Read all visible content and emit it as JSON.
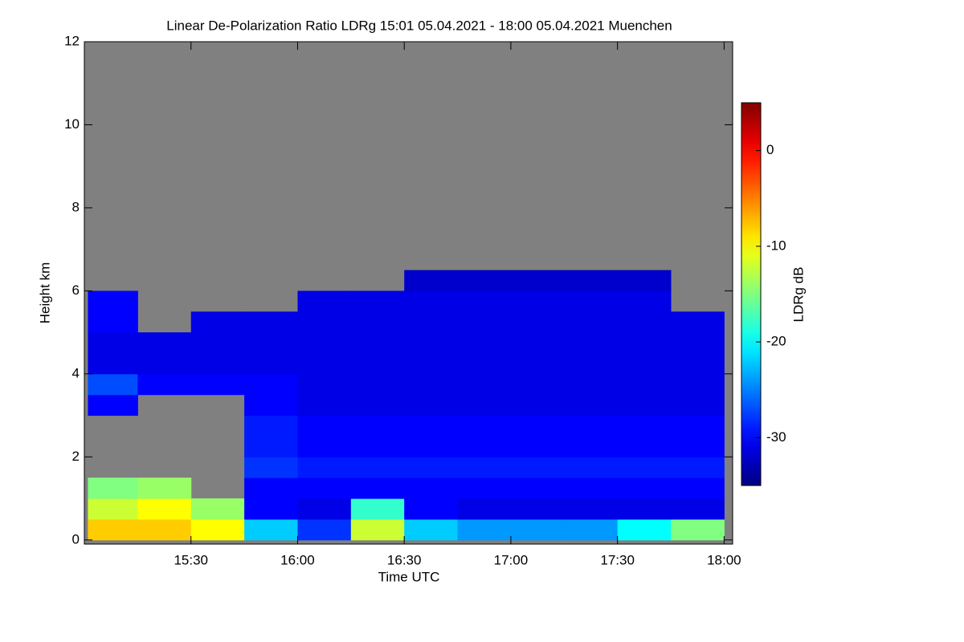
{
  "chart_data": {
    "type": "heatmap",
    "title": "Linear De-Polarization Ratio LDRg   15:01 05.04.2021 - 18:00 05.04.2021 Muenchen",
    "x_label": "Time UTC",
    "y_label": "Height km",
    "colorbar_label": "LDRg dB",
    "xlim": [
      15.0,
      18.04
    ],
    "xticks": [
      {
        "value": 15.5,
        "label": "15:30"
      },
      {
        "value": 16.0,
        "label": "16:00"
      },
      {
        "value": 16.5,
        "label": "16:30"
      },
      {
        "value": 17.0,
        "label": "17:00"
      },
      {
        "value": 17.5,
        "label": "17:30"
      },
      {
        "value": 18.0,
        "label": "18:00"
      }
    ],
    "ylim": [
      -0.1,
      12
    ],
    "yticks": [
      0,
      2,
      4,
      6,
      8,
      10,
      12
    ],
    "clim": [
      -35,
      5
    ],
    "cticks": [
      0,
      -10,
      -20,
      -30
    ],
    "colormap": "jet",
    "missing_color": "#808080",
    "xbins": [
      15.0167,
      15.25,
      15.5,
      15.75,
      16.0,
      16.25,
      16.5,
      16.75,
      17.0,
      17.25,
      17.5,
      17.75,
      18.0
    ],
    "ybins": [
      0,
      0.5,
      1,
      1.5,
      2,
      2.5,
      3,
      3.5,
      4,
      4.5,
      5,
      5.5,
      6,
      6.5
    ],
    "values": [
      [
        -8,
        -8,
        -10,
        -22,
        -28,
        -12,
        -22,
        -24,
        -24,
        -24,
        -20,
        -15
      ],
      [
        -12,
        -10,
        -14,
        -30,
        -31,
        -18,
        -30,
        -31,
        -31,
        -31,
        -31,
        -31
      ],
      [
        -15,
        -14,
        null,
        -30,
        -30,
        -30,
        -30,
        -30,
        -30,
        -30,
        -30,
        -30
      ],
      [
        null,
        null,
        null,
        -28,
        -29,
        -29,
        -29,
        -29,
        -29,
        -29,
        -29,
        -29
      ],
      [
        null,
        null,
        null,
        -29,
        -30,
        -30,
        -30,
        -30,
        -30,
        -30,
        -30,
        -30
      ],
      [
        null,
        null,
        null,
        -29,
        -30,
        -30,
        -30,
        -30,
        -30,
        -30,
        -30,
        -30
      ],
      [
        -30,
        null,
        null,
        -30,
        -31,
        -31,
        -31,
        -31,
        -31,
        -31,
        -31,
        -31
      ],
      [
        -27,
        -30,
        -30,
        -30,
        -31,
        -31,
        -31,
        -31,
        -31,
        -31,
        -31,
        -31
      ],
      [
        -31,
        -31,
        -31,
        -31,
        -31,
        -31,
        -31,
        -31,
        -31,
        -31,
        -31,
        -31
      ],
      [
        -31,
        -31,
        -31,
        -31,
        -31,
        -31,
        -31,
        -31,
        -31,
        -31,
        -31,
        -31
      ],
      [
        -30,
        null,
        -31,
        -31,
        -31,
        -31,
        -31,
        -31,
        -31,
        -31,
        -31,
        -31
      ],
      [
        -30,
        null,
        null,
        null,
        -31,
        -31,
        -31,
        -31,
        -31,
        -31,
        -31,
        null
      ],
      [
        null,
        null,
        null,
        null,
        null,
        null,
        -32,
        -32,
        -32,
        -32,
        -32,
        null
      ]
    ]
  }
}
